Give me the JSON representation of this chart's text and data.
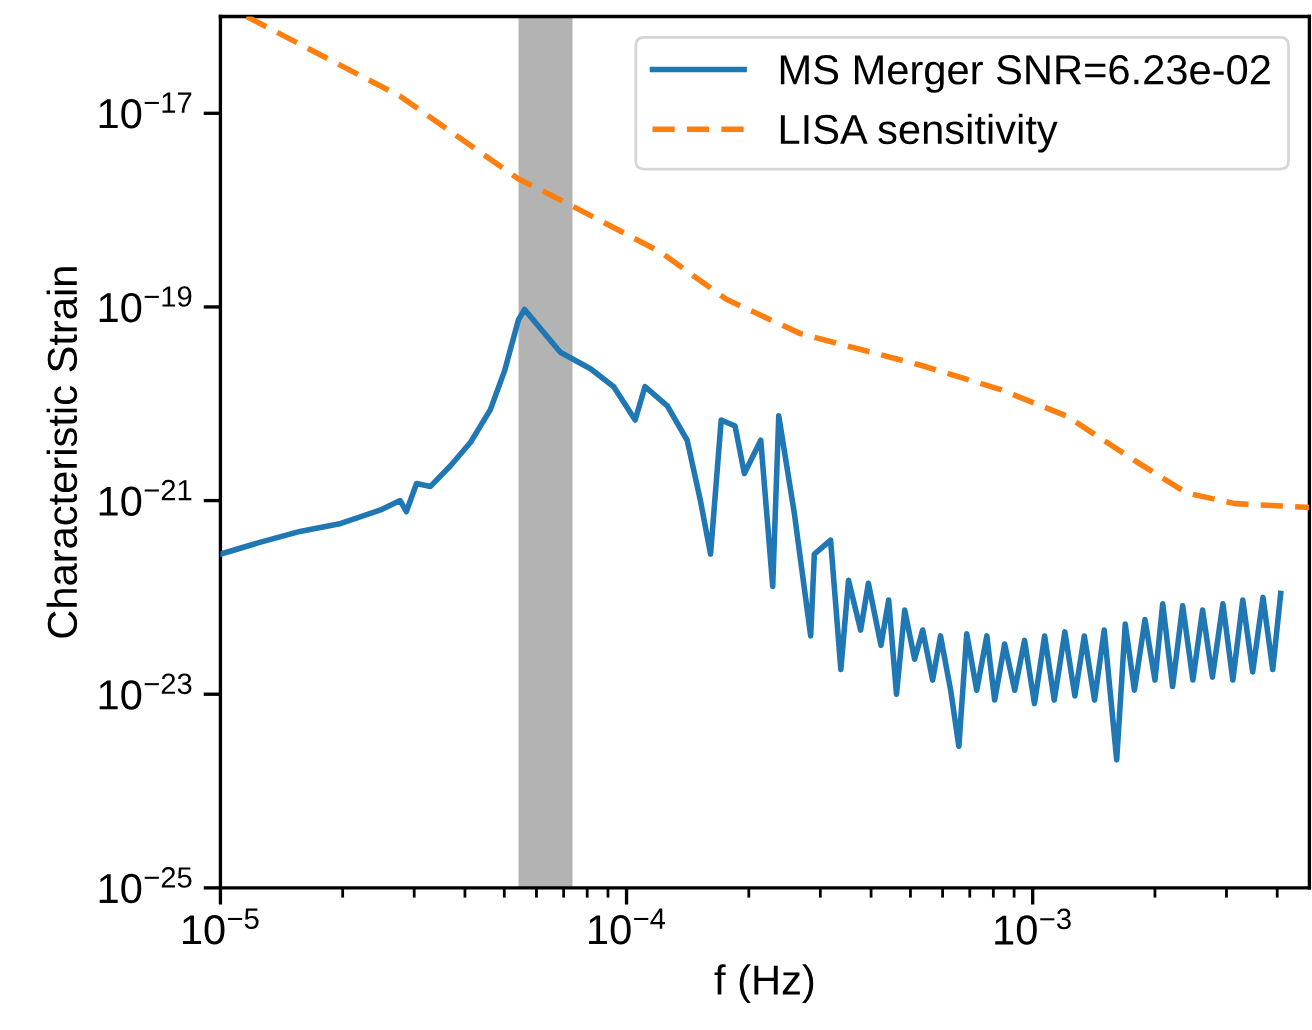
{
  "chart_data": {
    "type": "line",
    "xlabel": "f (Hz)",
    "ylabel": "Characteristic Strain",
    "log": "xy",
    "grid": false,
    "legend": "top right",
    "xlim": [
      1e-05,
      0.0048
    ],
    "ylim": [
      1e-25,
      1e-16
    ],
    "xticks": [
      {
        "value": 1e-05,
        "label": "10$^{−5}$"
      },
      {
        "value": 0.0001,
        "label": "10$^{−4}$"
      },
      {
        "value": 0.001,
        "label": "10$^{−3}$"
      }
    ],
    "yticks": [
      {
        "value": 1e-25,
        "label": "10$^{−25}$"
      },
      {
        "value": 1e-23,
        "label": "10$^{−23}$"
      },
      {
        "value": 1e-21,
        "label": "10$^{−21}$"
      },
      {
        "value": 1e-19,
        "label": "10$^{−19}$"
      },
      {
        "value": 1e-17,
        "label": "10$^{−17}$"
      }
    ],
    "bands": [
      {
        "axis": "x",
        "from": 5.42e-05,
        "to": 7.36e-05,
        "color": "#b3b3b3"
      }
    ],
    "series": [
      {
        "name": "MS Merger SNR=6.23e-02",
        "color": "#1f77b4",
        "line_style": "solid",
        "x": [
          1e-05,
          1.25e-05,
          1.57e-05,
          1.98e-05,
          2.48e-05,
          2.77e-05,
          2.87e-05,
          3.04e-05,
          3.29e-05,
          3.69e-05,
          4.13e-05,
          4.62e-05,
          5.01e-05,
          5.42e-05,
          5.61e-05,
          6e-05,
          6.87e-05,
          8.15e-05,
          9.3e-05,
          0.000105,
          0.000111,
          0.000126,
          0.000141,
          0.000152,
          0.000161,
          0.000171,
          0.000185,
          0.000195,
          0.000214,
          0.000229,
          0.000237,
          0.000259,
          0.000284,
          0.00029,
          0.000318,
          0.000337,
          0.000352,
          0.000377,
          0.000394,
          0.000423,
          0.000442,
          0.000462,
          0.000484,
          0.000512,
          0.000536,
          0.000567,
          0.000593,
          0.000628,
          0.000658,
          0.000688,
          0.000728,
          0.000771,
          0.000806,
          0.000853,
          0.000903,
          0.000955,
          0.00101,
          0.00107,
          0.00113,
          0.0012,
          0.00127,
          0.00134,
          0.00142,
          0.0015,
          0.00161,
          0.00169,
          0.00178,
          0.00189,
          0.002,
          0.00209,
          0.00221,
          0.00234,
          0.00248,
          0.00262,
          0.00277,
          0.00294,
          0.00311,
          0.00329,
          0.00348,
          0.00369,
          0.0039,
          0.00408
        ],
        "values": [
          2.8e-22,
          3.7e-22,
          4.8e-22,
          5.8e-22,
          8e-22,
          1e-21,
          7.7e-22,
          1.5e-21,
          1.4e-21,
          2.3e-21,
          4e-21,
          8.7e-21,
          2.2e-20,
          7.4e-20,
          9.4e-20,
          6.7e-20,
          3.4e-20,
          2.3e-20,
          1.5e-20,
          6.8e-21,
          1.5e-20,
          9.5e-21,
          4.2e-21,
          1e-21,
          2.8e-22,
          6.8e-21,
          5.9e-21,
          1.9e-21,
          4.2e-21,
          1.3e-22,
          7.5e-21,
          7.3e-22,
          4e-23,
          2.8e-22,
          3.9e-22,
          1.8e-23,
          1.5e-22,
          4.6e-23,
          1.4e-22,
          3.2e-23,
          9.4e-23,
          1e-23,
          7.4e-23,
          2.3e-23,
          4.6e-23,
          1.4e-23,
          4e-23,
          1.1e-23,
          2.9e-24,
          4.2e-23,
          1.1e-23,
          4e-23,
          8.7e-24,
          3.3e-23,
          1.1e-23,
          3.6e-23,
          8e-24,
          4e-23,
          8.7e-24,
          4.4e-23,
          9.6e-24,
          4e-23,
          8.7e-24,
          4.6e-23,
          2.1e-24,
          5.3e-23,
          1.1e-23,
          5.9e-23,
          1.4e-23,
          8.6e-23,
          1.2e-23,
          8.2e-23,
          1.4e-23,
          7.4e-23,
          1.5e-23,
          8.6e-23,
          1.4e-23,
          9.4e-23,
          1.7e-23,
          1e-22,
          1.8e-23,
          1.1e-22
        ]
      },
      {
        "name": "LISA sensitivity",
        "color": "#ff7f0e",
        "line_style": "dashed",
        "x": [
          1.16e-05,
          2.77e-05,
          5.42e-05,
          7.36e-05,
          0.000121,
          0.000176,
          0.000268,
          0.00053,
          0.000834,
          0.00121,
          0.00178,
          0.00239,
          0.00315,
          0.0048
        ],
        "values": [
          1e-16,
          1.5e-17,
          2.1e-18,
          1.1e-18,
          3.7e-19,
          1.2e-19,
          5.3e-20,
          2.5e-20,
          1.4e-20,
          7.5e-21,
          2.6e-21,
          1.2e-21,
          9.3e-22,
          8.5e-22
        ]
      }
    ]
  }
}
